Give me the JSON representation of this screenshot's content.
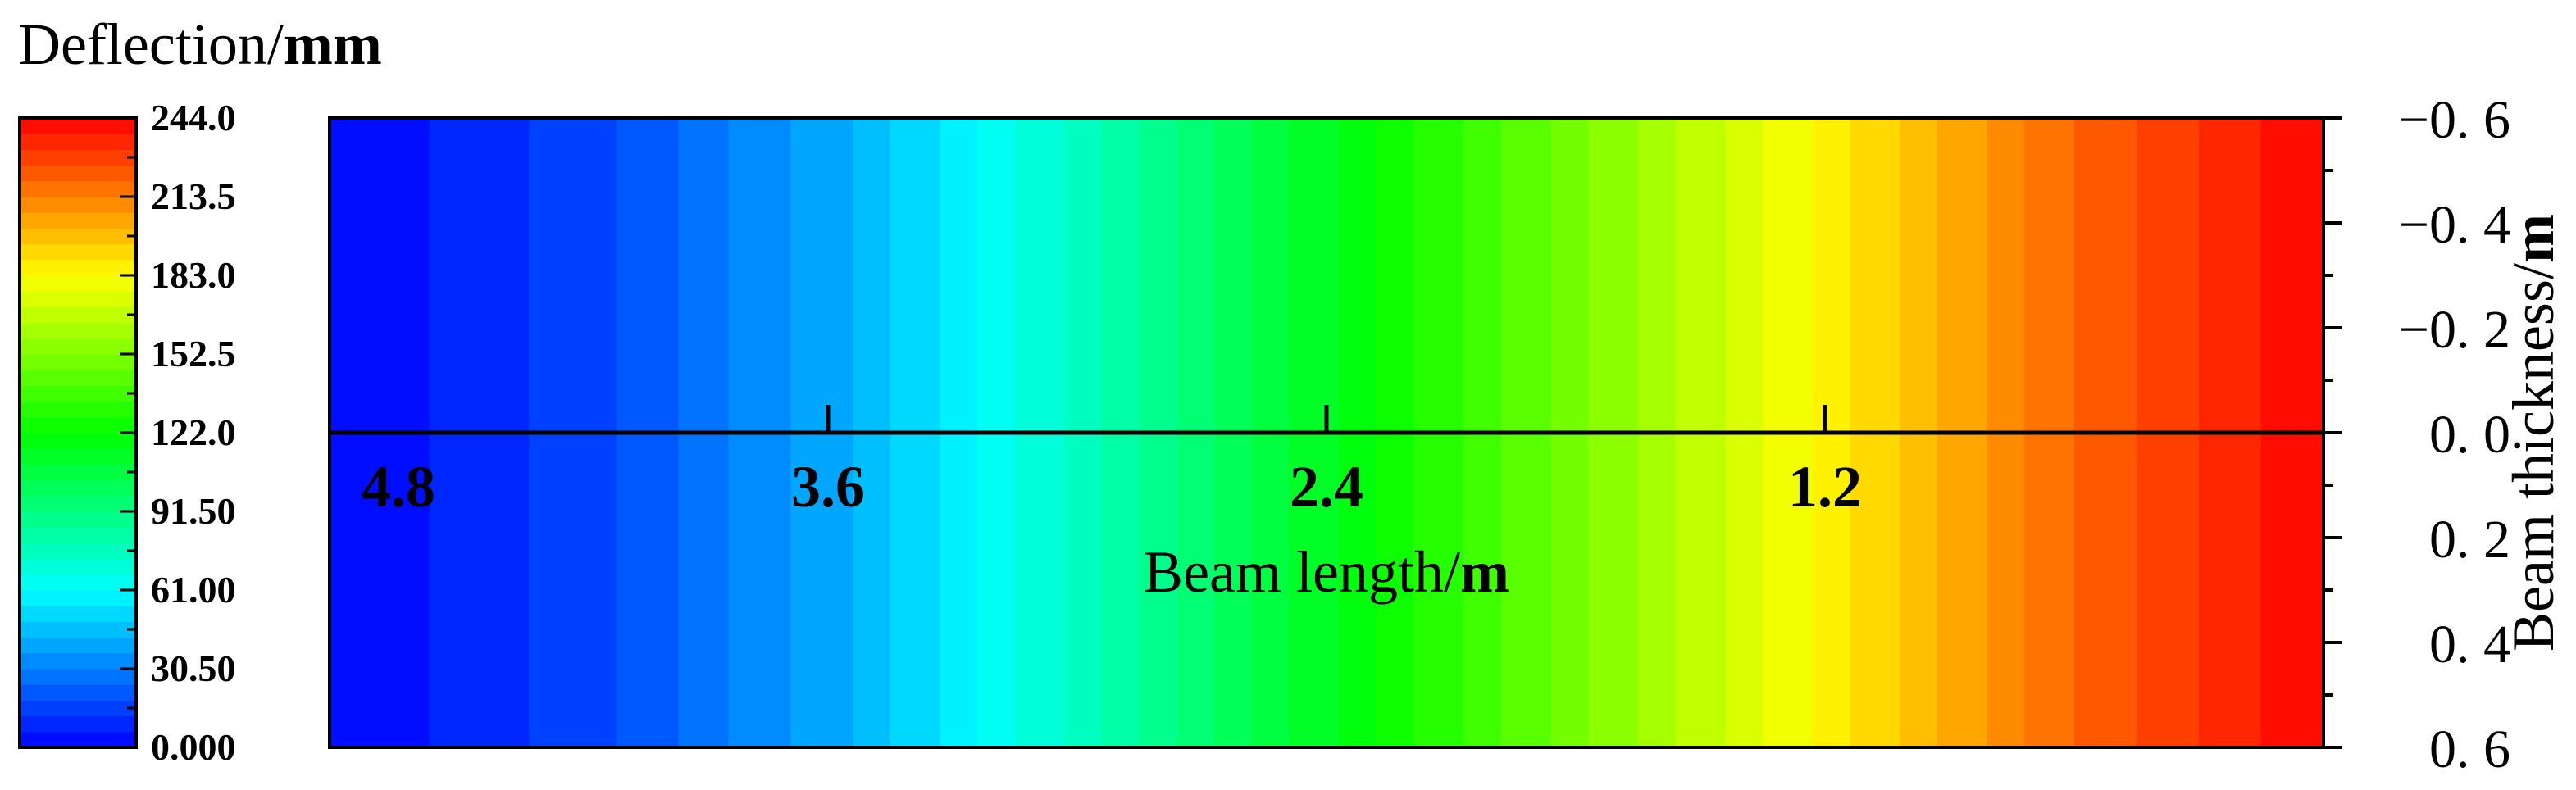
{
  "chart_data": {
    "type": "heatmap",
    "colorbar": {
      "title_plain": "Deflection/",
      "title_unit": "mm",
      "range": [
        0,
        244
      ],
      "tick_labels": [
        "244.0",
        "213.5",
        "183.0",
        "152.5",
        "122.0",
        "91.50",
        "61.00",
        "30.50",
        "0.000"
      ],
      "colors": [
        "#0000ff",
        "#00ffff",
        "#00ff00",
        "#ffff00",
        "#ff0000"
      ]
    },
    "x_axis": {
      "label_plain": "Beam length/",
      "label_unit": "m",
      "range": [
        0,
        4.8
      ],
      "reversed": true,
      "tick_labels": [
        "4.8",
        "3.6",
        "2.4",
        "1.2"
      ],
      "tick_values": [
        4.8,
        3.6,
        2.4,
        1.2
      ]
    },
    "y_axis": {
      "label_plain": "Beam thickness/",
      "label_unit": "m",
      "side": "right",
      "range": [
        -0.6,
        0.6
      ],
      "tick_labels": [
        "−0.6",
        "−0.4",
        "−0.2",
        "0.0",
        "0.2",
        "0.4",
        "0.6"
      ],
      "tick_values": [
        -0.6,
        -0.4,
        -0.2,
        0.0,
        0.2,
        0.4,
        0.6
      ]
    },
    "field": {
      "description": "deflection varies along beam length only; 0 at 4.8 m, 244 at 0 m",
      "x": [
        4.8,
        4.2,
        3.6,
        3.0,
        2.4,
        1.8,
        1.2,
        0.6,
        0.0
      ],
      "deflection": [
        0,
        15,
        40,
        75,
        115,
        150,
        185,
        220,
        244
      ]
    }
  }
}
